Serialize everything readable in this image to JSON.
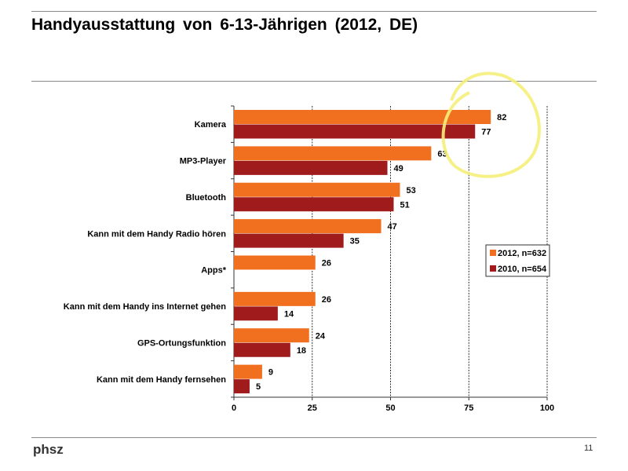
{
  "header": {
    "title": "Handyausstattung von 6-13-Jährigen (2012, DE)"
  },
  "footer": {
    "logo": "phsz",
    "page_number": "11"
  },
  "chart_data": {
    "type": "bar",
    "orientation": "horizontal",
    "categories": [
      "Kamera",
      "MP3-Player",
      "Bluetooth",
      "Kann mit dem Handy Radio hören",
      "Apps*",
      "Kann mit dem Handy ins Internet gehen",
      "GPS-Ortungsfunktion",
      "Kann mit dem Handy fernsehen"
    ],
    "series": [
      {
        "name": "2012, n=632",
        "color": "#f07020",
        "values": [
          82,
          63,
          53,
          47,
          26,
          26,
          24,
          9
        ]
      },
      {
        "name": "2010, n=654",
        "color": "#a01c1c",
        "values": [
          77,
          49,
          51,
          35,
          null,
          14,
          18,
          5
        ]
      }
    ],
    "xlim": [
      0,
      100
    ],
    "xticks": [
      "0",
      "25",
      "50",
      "75",
      "100"
    ],
    "grid": "vertical dashed",
    "legend": "right",
    "annotation": {
      "type": "hand-drawn circle",
      "color": "#f5f07a",
      "around": "Kamera values"
    }
  }
}
